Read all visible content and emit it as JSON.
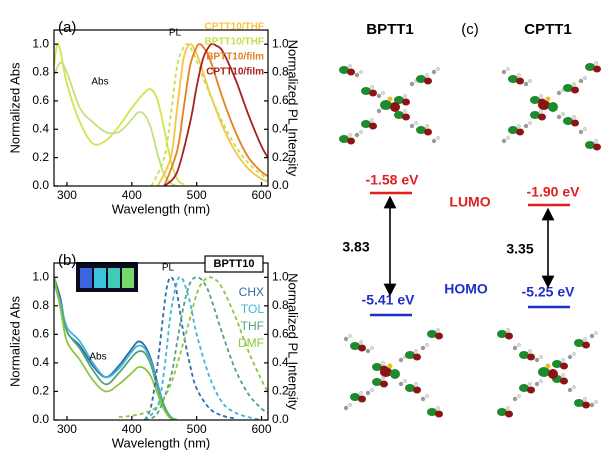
{
  "chart_data": [
    {
      "type": "line",
      "panel": "(a)",
      "xlabel": "Wavelength (nm)",
      "ylabel": "Normalized Abs",
      "y2label": "Normalized PL Intensity",
      "xlim": [
        280,
        610
      ],
      "xticks": [
        300,
        400,
        500,
        600
      ],
      "ylim": [
        0,
        1.1
      ],
      "yticks": [
        {
          "value": 0,
          "label": "0.0"
        },
        0.2,
        0.4,
        0.6,
        0.8,
        {
          "value": 1,
          "label": "1.0"
        }
      ],
      "y2lim": [
        0,
        1.1
      ],
      "y2ticks": [
        {
          "value": 0,
          "label": "0.0"
        },
        0.2,
        0.4,
        0.6,
        0.8,
        {
          "value": 1,
          "label": "1.0"
        }
      ],
      "annotations": [
        "Abs",
        "PL"
      ],
      "series": [
        {
          "color": "#d6e24e",
          "dash": false,
          "axis": "y",
          "x": [
            280,
            285,
            290,
            300,
            320,
            340,
            360,
            380,
            400,
            420,
            430,
            440,
            450,
            460,
            470,
            480
          ],
          "values": [
            0.85,
            1.0,
            0.95,
            0.72,
            0.45,
            0.3,
            0.32,
            0.42,
            0.55,
            0.66,
            0.68,
            0.6,
            0.4,
            0.18,
            0.05,
            0.01
          ]
        },
        {
          "color": "#c0e47a",
          "dash": false,
          "axis": "y",
          "x": [
            280,
            290,
            300,
            320,
            340,
            360,
            380,
            400,
            410,
            420,
            430,
            440,
            450,
            460,
            470
          ],
          "values": [
            0.78,
            0.87,
            0.8,
            0.55,
            0.45,
            0.38,
            0.38,
            0.47,
            0.52,
            0.5,
            0.4,
            0.22,
            0.08,
            0.02,
            0
          ]
        },
        {
          "name": "CPTT10/THF",
          "color": "#f5c542",
          "dash": false,
          "axis": "y2",
          "x": [
            440,
            460,
            470,
            480,
            490,
            500,
            510,
            520,
            540,
            560,
            580,
            600,
            610
          ],
          "values": [
            0,
            0.2,
            0.55,
            0.9,
            1.0,
            0.93,
            0.8,
            0.66,
            0.42,
            0.24,
            0.12,
            0.05,
            0.03
          ]
        },
        {
          "name": "BPTT10/THF",
          "color": "#c6e04c",
          "dash": true,
          "axis": "y2",
          "x": [
            430,
            450,
            460,
            470,
            480,
            485,
            490,
            500,
            520,
            540,
            560,
            580,
            600,
            610
          ],
          "values": [
            0,
            0.2,
            0.5,
            0.85,
            0.98,
            1.0,
            0.98,
            0.88,
            0.65,
            0.45,
            0.28,
            0.16,
            0.08,
            0.05
          ]
        },
        {
          "name": "BPTT10/film",
          "color": "#e5801e",
          "dash": false,
          "axis": "y2",
          "x": [
            450,
            470,
            480,
            490,
            500,
            505,
            510,
            520,
            540,
            560,
            580,
            600,
            610
          ],
          "values": [
            0,
            0.25,
            0.55,
            0.85,
            0.98,
            1.0,
            0.98,
            0.9,
            0.62,
            0.38,
            0.2,
            0.1,
            0.07
          ]
        },
        {
          "name": "CPTT10/film",
          "color": "#a8201e",
          "dash": false,
          "axis": "y2",
          "x": [
            450,
            470,
            490,
            500,
            510,
            520,
            525,
            530,
            540,
            560,
            580,
            600,
            610
          ],
          "values": [
            0,
            0.1,
            0.45,
            0.7,
            0.9,
            0.99,
            1.0,
            0.99,
            0.95,
            0.75,
            0.5,
            0.28,
            0.2
          ]
        }
      ]
    },
    {
      "type": "line",
      "panel": "(b)",
      "legend_title": "BPTT10",
      "xlabel": "Wavelength (nm)",
      "ylabel": "Normalized Abs",
      "y2label": "Normalized PL Intensity",
      "xlim": [
        280,
        610
      ],
      "xticks": [
        300,
        400,
        500,
        600
      ],
      "ylim": [
        0,
        1.1
      ],
      "yticks": [
        {
          "value": 0,
          "label": "0.0"
        },
        0.2,
        0.4,
        0.6,
        0.8,
        {
          "value": 1,
          "label": "1.0"
        }
      ],
      "y2lim": [
        0,
        1.1
      ],
      "y2ticks": [
        {
          "value": 0,
          "label": "0.0"
        },
        0.2,
        0.4,
        0.6,
        0.8,
        {
          "value": 1,
          "label": "1.0"
        }
      ],
      "annotations": [
        "Abs",
        "PL"
      ],
      "series": [
        {
          "color": "#2e6ea8",
          "dash": false,
          "axis": "y",
          "x": [
            280,
            290,
            300,
            320,
            340,
            360,
            380,
            400,
            410,
            420,
            430,
            440,
            450,
            460,
            470
          ],
          "values": [
            1.0,
            0.85,
            0.62,
            0.52,
            0.38,
            0.3,
            0.38,
            0.5,
            0.55,
            0.52,
            0.42,
            0.25,
            0.1,
            0.02,
            0
          ]
        },
        {
          "color": "#3fb6dc",
          "dash": false,
          "axis": "y",
          "x": [
            280,
            290,
            300,
            320,
            340,
            360,
            380,
            400,
            410,
            420,
            430,
            440,
            450,
            460,
            470
          ],
          "values": [
            0.98,
            0.82,
            0.65,
            0.55,
            0.4,
            0.3,
            0.36,
            0.48,
            0.52,
            0.5,
            0.4,
            0.24,
            0.1,
            0.02,
            0
          ]
        },
        {
          "color": "#4fa47a",
          "dash": false,
          "axis": "y",
          "x": [
            280,
            290,
            300,
            320,
            340,
            360,
            380,
            400,
            410,
            420,
            430,
            440,
            450,
            460,
            470
          ],
          "values": [
            0.97,
            0.8,
            0.62,
            0.5,
            0.35,
            0.25,
            0.33,
            0.44,
            0.48,
            0.47,
            0.38,
            0.22,
            0.09,
            0.02,
            0
          ]
        },
        {
          "color": "#8dc63f",
          "dash": false,
          "axis": "y",
          "x": [
            280,
            290,
            300,
            320,
            340,
            360,
            380,
            400,
            410,
            420,
            430,
            440,
            450,
            460,
            470
          ],
          "values": [
            1.0,
            0.78,
            0.55,
            0.42,
            0.28,
            0.2,
            0.25,
            0.33,
            0.37,
            0.36,
            0.3,
            0.18,
            0.07,
            0.01,
            0
          ]
        },
        {
          "name": "CHX",
          "color": "#2e6ea8",
          "dash": true,
          "axis": "y2",
          "x": [
            420,
            430,
            440,
            450,
            455,
            460,
            465,
            470,
            480,
            490,
            500,
            520,
            540,
            560
          ],
          "values": [
            0,
            0.1,
            0.4,
            0.8,
            0.95,
            1.0,
            0.97,
            0.88,
            0.6,
            0.38,
            0.22,
            0.08,
            0.03,
            0.01
          ]
        },
        {
          "name": "TOL",
          "color": "#3fb6dc",
          "dash": true,
          "axis": "y2",
          "x": [
            420,
            440,
            450,
            460,
            470,
            475,
            480,
            490,
            500,
            520,
            540,
            560,
            580,
            600
          ],
          "values": [
            0,
            0.1,
            0.35,
            0.75,
            0.97,
            1.0,
            0.97,
            0.82,
            0.6,
            0.3,
            0.12,
            0.05,
            0.02,
            0
          ]
        },
        {
          "name": "THF",
          "color": "#4fa47a",
          "dash": true,
          "axis": "y2",
          "x": [
            420,
            440,
            460,
            470,
            480,
            490,
            500,
            510,
            520,
            540,
            560,
            580,
            600,
            610
          ],
          "values": [
            0,
            0.05,
            0.3,
            0.55,
            0.8,
            0.96,
            1.0,
            0.97,
            0.88,
            0.6,
            0.35,
            0.18,
            0.08,
            0.05
          ]
        },
        {
          "name": "DMF",
          "color": "#8dc63f",
          "dash": true,
          "axis": "y2",
          "x": [
            380,
            400,
            420,
            440,
            460,
            480,
            500,
            510,
            520,
            530,
            540,
            560,
            580,
            600,
            610
          ],
          "values": [
            0.02,
            0.03,
            0.05,
            0.1,
            0.25,
            0.55,
            0.88,
            0.97,
            1.0,
            0.98,
            0.92,
            0.72,
            0.48,
            0.28,
            0.2
          ]
        }
      ]
    }
  ],
  "diagram": {
    "panel": "(c)",
    "lumo_label": "LUMO",
    "homo_label": "HOMO",
    "molecules": [
      {
        "name": "BPTT1",
        "lumo": "-1.58 eV",
        "homo": "-5.41 eV",
        "gap": "3.83"
      },
      {
        "name": "CPTT1",
        "lumo": "-1.90 eV",
        "homo": "-5.25 eV",
        "gap": "3.35"
      }
    ]
  }
}
